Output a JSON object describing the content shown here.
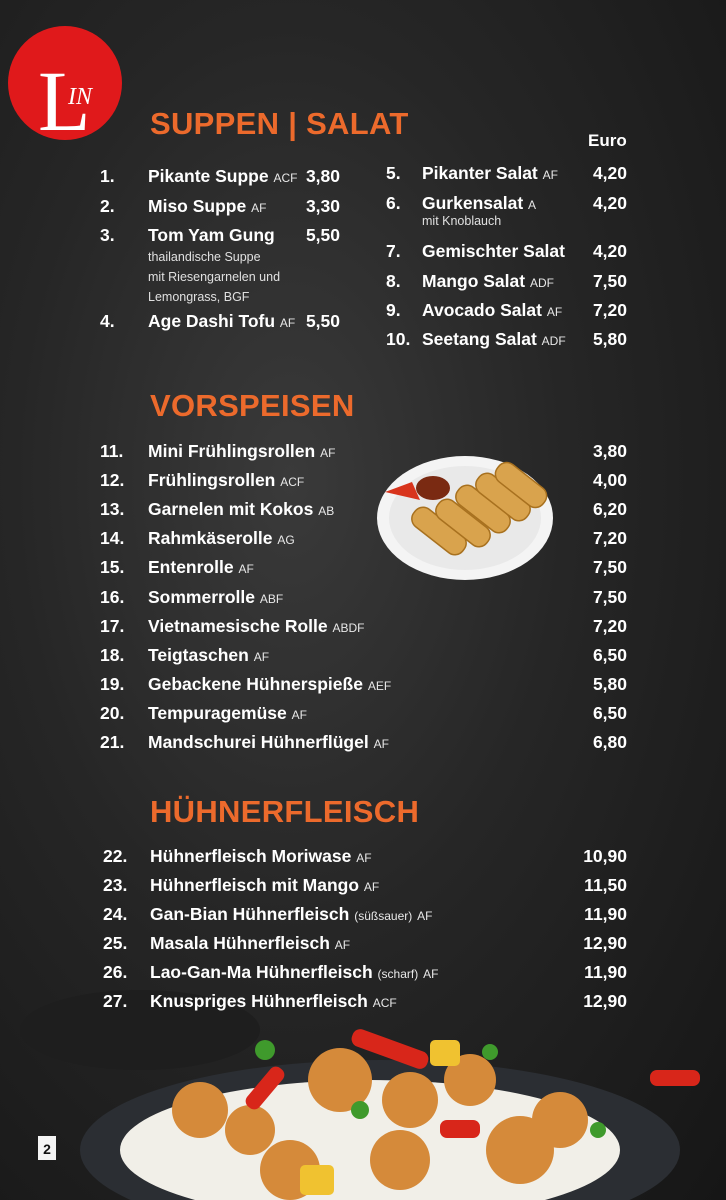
{
  "logo": {
    "initial": "L",
    "rest": "IN"
  },
  "currency": "Euro",
  "page_number": "2",
  "sections": [
    {
      "title": "SUPPEN | SALAT",
      "items": [
        {
          "number": "1.",
          "name": "Pikante Suppe",
          "allergens": "ACF",
          "price": "3,80"
        },
        {
          "number": "2.",
          "name": "Miso Suppe",
          "allergens": "AF",
          "price": "3,30"
        },
        {
          "number": "3.",
          "name": "Tom Yam Gung",
          "note": [
            "thailandische Suppe",
            "mit Riesengarnelen und",
            "Lemongrass, BGF"
          ],
          "price": "5,50"
        },
        {
          "number": "4.",
          "name": "Age Dashi Tofu",
          "allergens": "AF",
          "price": "5,50"
        },
        {
          "number": "5.",
          "name": "Pikanter  Salat",
          "allergens": "AF",
          "price": "4,20"
        },
        {
          "number": "6.",
          "name": "Gurkensalat",
          "allergens": "A",
          "note": [
            "mit Knoblauch"
          ],
          "price": "4,20"
        },
        {
          "number": "7.",
          "name": "Gemischter Salat",
          "price": "4,20"
        },
        {
          "number": "8.",
          "name": "Mango Salat",
          "allergens": "ADF",
          "price": "7,50"
        },
        {
          "number": "9.",
          "name": "Avocado Salat",
          "allergens": "AF",
          "price": "7,20"
        },
        {
          "number": "10.",
          "name": "Seetang Salat",
          "allergens": "ADF",
          "price": "5,80"
        }
      ]
    },
    {
      "title": "VORSPEISEN",
      "items": [
        {
          "number": "11.",
          "name": "Mini Frühlingsrollen",
          "allergens": "AF",
          "price": "3,80"
        },
        {
          "number": "12.",
          "name": "Frühlingsrollen",
          "allergens": "ACF",
          "price": "4,00"
        },
        {
          "number": "13.",
          "name": "Garnelen mit Kokos",
          "allergens": "AB",
          "price": "6,20"
        },
        {
          "number": "14.",
          "name": "Rahmkäserolle",
          "allergens": "AG",
          "price": "7,20"
        },
        {
          "number": "15.",
          "name": "Entenrolle",
          "allergens": "AF",
          "price": "7,50"
        },
        {
          "number": "16.",
          "name": "Sommerrolle",
          "allergens": "ABF",
          "price": "7,50"
        },
        {
          "number": "17.",
          "name": "Vietnamesische Rolle",
          "allergens": "ABDF",
          "price": "7,20"
        },
        {
          "number": "18.",
          "name": "Teigtaschen",
          "allergens": "AF",
          "price": "6,50"
        },
        {
          "number": "19.",
          "name": "Gebackene Hühnerspieße",
          "allergens": "AEF",
          "price": "5,80"
        },
        {
          "number": "20.",
          "name": "Tempuragemüse",
          "allergens": "AF",
          "price": "6,50"
        },
        {
          "number": "21.",
          "name": "Mandschurei Hühnerflügel",
          "allergens": "AF",
          "price": "6,80"
        }
      ]
    },
    {
      "title": "HÜHNERFLEISCH",
      "items": [
        {
          "number": "22.",
          "name": "Hühnerfleisch Moriwase",
          "allergens": "AF",
          "price": "10,90"
        },
        {
          "number": "23.",
          "name": "Hühnerfleisch mit Mango",
          "allergens": "AF",
          "price": "11,50"
        },
        {
          "number": "24.",
          "name": "Gan-Bian Hühnerfleisch",
          "detail": "(süßsauer)",
          "allergens": "AF",
          "price": "11,90"
        },
        {
          "number": "25.",
          "name": "Masala Hühnerfleisch",
          "allergens": "AF",
          "price": "12,90"
        },
        {
          "number": "26.",
          "name": "Lao-Gan-Ma Hühnerfleisch",
          "detail": "(scharf)",
          "allergens": "AF",
          "price": "11,90"
        },
        {
          "number": "27.",
          "name": "Knuspriges Hühnerfleisch",
          "allergens": "ACF",
          "price": "12,90"
        }
      ]
    }
  ]
}
